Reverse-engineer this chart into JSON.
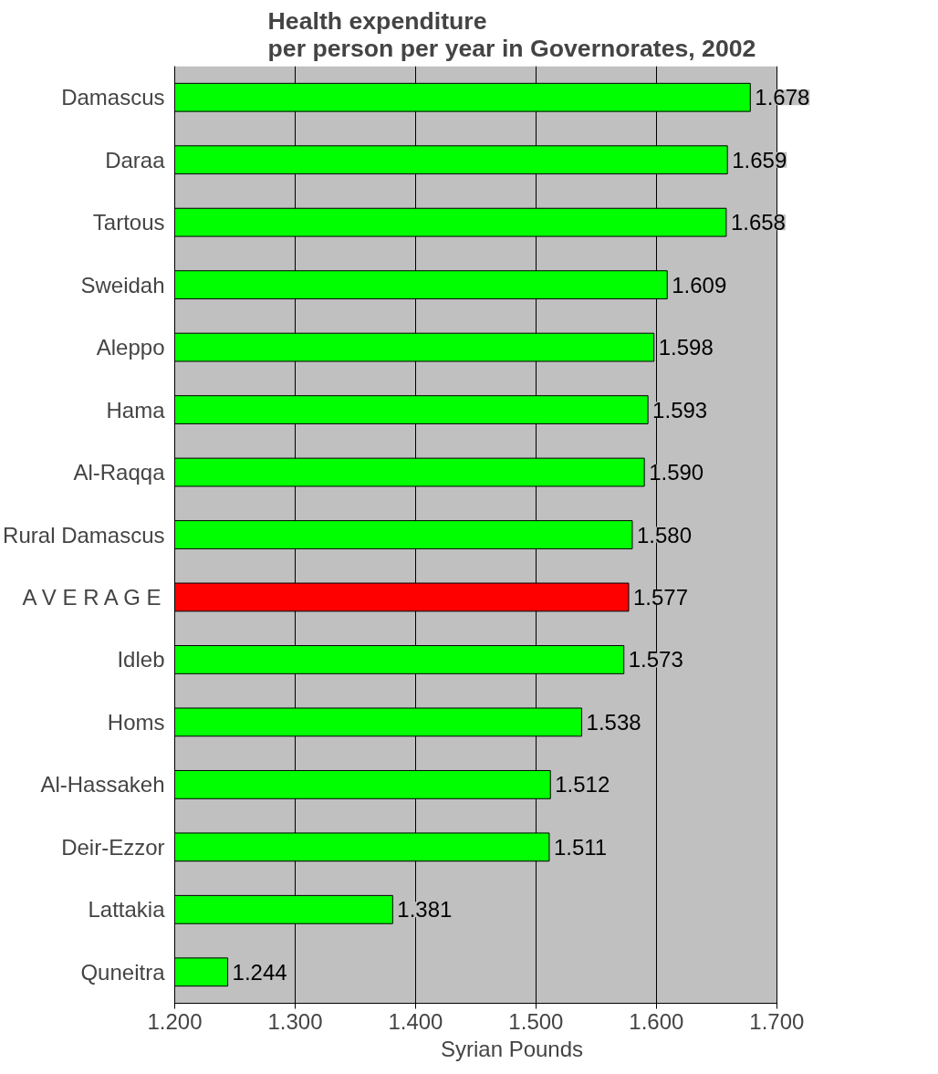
{
  "chart_data": {
    "type": "bar",
    "orientation": "horizontal",
    "title": "Health expenditure\nper person per year in Governorates, 2002",
    "xlabel": "Syrian Pounds",
    "categories": [
      "Damascus",
      "Daraa",
      "Tartous",
      "Sweidah",
      "Aleppo",
      "Hama",
      "Al-Raqqa",
      "Rural Damascus",
      "A V E R A G E",
      "Idleb",
      "Homs",
      "Al-Hassakeh",
      "Deir-Ezzor",
      "Lattakia",
      "Quneitra"
    ],
    "values": [
      1.678,
      1.659,
      1.658,
      1.609,
      1.598,
      1.593,
      1.59,
      1.58,
      1.577,
      1.573,
      1.538,
      1.512,
      1.511,
      1.381,
      1.244
    ],
    "colors": [
      "#00ff00",
      "#00ff00",
      "#00ff00",
      "#00ff00",
      "#00ff00",
      "#00ff00",
      "#00ff00",
      "#00ff00",
      "#ff0000",
      "#00ff00",
      "#00ff00",
      "#00ff00",
      "#00ff00",
      "#00ff00",
      "#00ff00"
    ],
    "value_labels": [
      "1.678",
      "1.659",
      "1.658",
      "1.609",
      "1.598",
      "1.593",
      "1.590",
      "1.580",
      "1.577",
      "1.573",
      "1.538",
      "1.512",
      "1.511",
      "1.381",
      "1.244"
    ],
    "xlim": [
      1.2,
      1.7
    ],
    "xticks": [
      {
        "value": 1.2,
        "label": "1.200"
      },
      {
        "value": 1.3,
        "label": "1.300"
      },
      {
        "value": 1.4,
        "label": "1.400"
      },
      {
        "value": 1.5,
        "label": "1.500"
      },
      {
        "value": 1.6,
        "label": "1.600"
      },
      {
        "value": 1.7,
        "label": "1.700"
      }
    ],
    "grid": "x"
  }
}
